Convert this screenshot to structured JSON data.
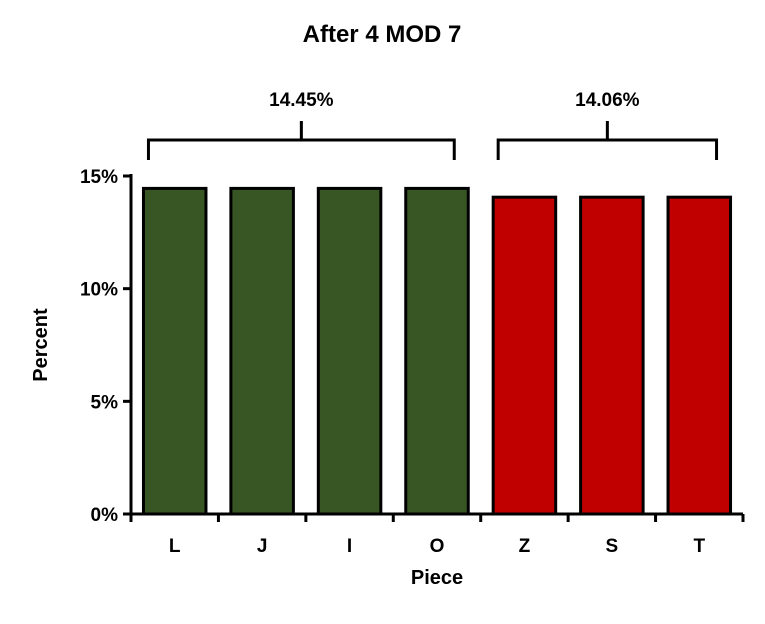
{
  "chart_data": {
    "type": "bar",
    "title": "After 4 MOD 7",
    "xlabel": "Piece",
    "ylabel": "Percent",
    "ylim": [
      0,
      15
    ],
    "yticks": [
      0,
      5,
      10,
      15
    ],
    "ytick_labels": [
      "0%",
      "5%",
      "10%",
      "15%"
    ],
    "categories": [
      "L",
      "J",
      "I",
      "O",
      "Z",
      "S",
      "T"
    ],
    "values": [
      14.45,
      14.45,
      14.45,
      14.45,
      14.06,
      14.06,
      14.06
    ],
    "bar_colors": [
      "#375623",
      "#375623",
      "#375623",
      "#375623",
      "#C00000",
      "#C00000",
      "#C00000"
    ],
    "groups": [
      {
        "label": "14.45%",
        "categories": [
          "L",
          "J",
          "I",
          "O"
        ]
      },
      {
        "label": "14.06%",
        "categories": [
          "Z",
          "S",
          "T"
        ]
      }
    ],
    "grid": false
  }
}
